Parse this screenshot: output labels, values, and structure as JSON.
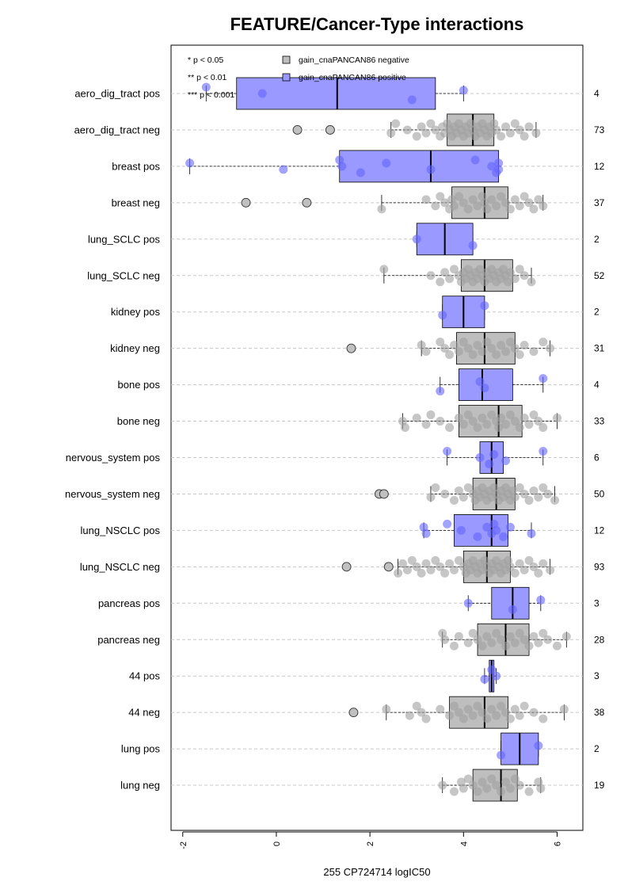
{
  "chart_data": {
    "type": "boxplot",
    "orientation": "horizontal",
    "title": "FEATURE/Cancer-Type interactions",
    "xlabel": "255 CP724714 logIC50",
    "xlim": [
      -2.25,
      6.55
    ],
    "xticks": [
      -2,
      0,
      2,
      4,
      6
    ],
    "grid": "horizontal dashed",
    "significance_legend": [
      "* p < 0.05",
      "** p < 0.01",
      "*** p < 0.001"
    ],
    "legend": [
      {
        "label": "gain_cnaPANCAN86 negative",
        "color": "#bebebe"
      },
      {
        "label": "gain_cnaPANCAN86 positive",
        "color": "#9999ff"
      }
    ],
    "point_colors": {
      "neg": "#a0a0a0",
      "pos": "#6464ff"
    },
    "categories": [
      {
        "label": "aero_dig_tract pos",
        "group": "pos",
        "n": "4",
        "box": {
          "q1": -0.85,
          "median": 1.3,
          "q3": 3.4,
          "wlo": -1.5,
          "whi": 4.0
        },
        "outliers": [],
        "points": [
          -1.5,
          -0.3,
          2.9,
          4.0
        ]
      },
      {
        "label": "aero_dig_tract neg",
        "group": "neg",
        "n": "73",
        "box": {
          "q1": 3.65,
          "median": 4.2,
          "q3": 4.65,
          "wlo": 2.45,
          "whi": 5.55
        },
        "outliers": [
          0.45,
          1.15
        ],
        "points": [
          2.45,
          2.55,
          2.8,
          3.0,
          3.1,
          3.2,
          3.3,
          3.4,
          3.5,
          3.55,
          3.6,
          3.65,
          3.7,
          3.75,
          3.8,
          3.85,
          3.9,
          3.95,
          4.0,
          4.05,
          4.1,
          4.15,
          4.2,
          4.25,
          4.3,
          4.35,
          4.4,
          4.45,
          4.5,
          4.55,
          4.6,
          4.65,
          4.7,
          4.8,
          4.9,
          5.0,
          5.1,
          5.2,
          5.3,
          5.4,
          5.55
        ]
      },
      {
        "label": "breast pos",
        "group": "pos",
        "n": "12",
        "box": {
          "q1": 1.35,
          "median": 3.3,
          "q3": 4.75,
          "wlo": -1.85,
          "whi": 4.75
        },
        "outliers": [],
        "points": [
          -1.85,
          0.15,
          1.35,
          1.4,
          1.8,
          2.35,
          3.3,
          4.25,
          4.6,
          4.7,
          4.75,
          4.75
        ]
      },
      {
        "label": "breast neg",
        "group": "neg",
        "n": "37",
        "box": {
          "q1": 3.75,
          "median": 4.45,
          "q3": 4.95,
          "wlo": 2.25,
          "whi": 5.7
        },
        "outliers": [
          -0.65,
          0.65
        ],
        "points": [
          2.25,
          3.2,
          3.4,
          3.5,
          3.6,
          3.7,
          3.75,
          3.8,
          3.9,
          4.0,
          4.1,
          4.2,
          4.3,
          4.4,
          4.45,
          4.5,
          4.6,
          4.7,
          4.8,
          4.9,
          5.0,
          5.1,
          5.2,
          5.3,
          5.4,
          5.5,
          5.6,
          5.7
        ]
      },
      {
        "label": "lung_SCLC pos",
        "group": "pos",
        "n": "2",
        "box": {
          "q1": 3.0,
          "median": 3.6,
          "q3": 4.2,
          "wlo": 3.0,
          "whi": 4.2
        },
        "outliers": [],
        "points": [
          3.0,
          4.2
        ]
      },
      {
        "label": "lung_SCLC neg",
        "group": "neg",
        "n": "52",
        "box": {
          "q1": 3.95,
          "median": 4.45,
          "q3": 5.05,
          "wlo": 2.3,
          "whi": 5.45
        },
        "outliers": [],
        "points": [
          2.3,
          3.3,
          3.5,
          3.6,
          3.7,
          3.8,
          3.9,
          3.95,
          4.0,
          4.05,
          4.1,
          4.15,
          4.2,
          4.25,
          4.3,
          4.35,
          4.4,
          4.45,
          4.5,
          4.55,
          4.6,
          4.65,
          4.7,
          4.75,
          4.8,
          4.85,
          4.9,
          4.95,
          5.0,
          5.1,
          5.2,
          5.3,
          5.45
        ]
      },
      {
        "label": "kidney pos",
        "group": "pos",
        "n": "2",
        "box": {
          "q1": 3.55,
          "median": 4.0,
          "q3": 4.45,
          "wlo": 3.55,
          "whi": 4.45
        },
        "outliers": [],
        "points": [
          3.55,
          4.45
        ]
      },
      {
        "label": "kidney neg",
        "group": "neg",
        "n": "31",
        "box": {
          "q1": 3.85,
          "median": 4.45,
          "q3": 5.1,
          "wlo": 3.1,
          "whi": 5.85
        },
        "outliers": [
          1.6
        ],
        "points": [
          3.1,
          3.2,
          3.5,
          3.6,
          3.7,
          3.8,
          3.9,
          4.0,
          4.1,
          4.2,
          4.3,
          4.4,
          4.5,
          4.6,
          4.7,
          4.8,
          4.9,
          5.0,
          5.1,
          5.2,
          5.3,
          5.5,
          5.7,
          5.85
        ]
      },
      {
        "label": "bone pos",
        "group": "pos",
        "n": "4",
        "box": {
          "q1": 3.9,
          "median": 4.4,
          "q3": 5.05,
          "wlo": 3.5,
          "whi": 5.7
        },
        "outliers": [],
        "points": [
          3.5,
          4.35,
          4.45,
          5.7
        ]
      },
      {
        "label": "bone neg",
        "group": "neg",
        "n": "33",
        "box": {
          "q1": 3.9,
          "median": 4.75,
          "q3": 5.25,
          "wlo": 2.7,
          "whi": 6.0
        },
        "outliers": [],
        "points": [
          2.7,
          2.75,
          3.0,
          3.2,
          3.3,
          3.5,
          3.7,
          3.9,
          4.0,
          4.1,
          4.2,
          4.3,
          4.4,
          4.5,
          4.6,
          4.7,
          4.75,
          4.8,
          4.9,
          5.0,
          5.1,
          5.2,
          5.3,
          5.4,
          5.5,
          5.6,
          5.7,
          6.0
        ]
      },
      {
        "label": "nervous_system pos",
        "group": "pos",
        "n": "6",
        "box": {
          "q1": 4.35,
          "median": 4.6,
          "q3": 4.85,
          "wlo": 3.65,
          "whi": 5.7
        },
        "outliers": [],
        "points": [
          3.65,
          4.35,
          4.55,
          4.65,
          4.9,
          5.7
        ]
      },
      {
        "label": "nervous_system neg",
        "group": "neg",
        "n": "50",
        "box": {
          "q1": 4.2,
          "median": 4.7,
          "q3": 5.1,
          "wlo": 3.3,
          "whi": 5.95
        },
        "outliers": [
          2.2,
          2.3
        ],
        "points": [
          3.3,
          3.4,
          3.6,
          3.8,
          3.9,
          4.0,
          4.1,
          4.2,
          4.25,
          4.3,
          4.35,
          4.4,
          4.45,
          4.5,
          4.55,
          4.6,
          4.65,
          4.7,
          4.75,
          4.8,
          4.85,
          4.9,
          4.95,
          5.0,
          5.05,
          5.1,
          5.2,
          5.3,
          5.4,
          5.5,
          5.6,
          5.7,
          5.8,
          5.95
        ]
      },
      {
        "label": "lung_NSCLC pos",
        "group": "pos",
        "n": "12",
        "box": {
          "q1": 3.8,
          "median": 4.6,
          "q3": 4.95,
          "wlo": 3.15,
          "whi": 5.45
        },
        "outliers": [],
        "points": [
          3.15,
          3.2,
          3.65,
          3.95,
          4.3,
          4.5,
          4.6,
          4.65,
          4.7,
          4.85,
          5.0,
          5.45
        ]
      },
      {
        "label": "lung_NSCLC neg",
        "group": "neg",
        "n": "93",
        "box": {
          "q1": 4.0,
          "median": 4.5,
          "q3": 5.0,
          "wlo": 2.6,
          "whi": 5.85
        },
        "outliers": [
          1.5,
          2.4
        ],
        "points": [
          2.6,
          2.7,
          2.8,
          2.9,
          3.0,
          3.1,
          3.2,
          3.3,
          3.4,
          3.5,
          3.6,
          3.7,
          3.8,
          3.9,
          4.0,
          4.05,
          4.1,
          4.15,
          4.2,
          4.25,
          4.3,
          4.35,
          4.4,
          4.45,
          4.5,
          4.55,
          4.6,
          4.65,
          4.7,
          4.75,
          4.8,
          4.85,
          4.9,
          4.95,
          5.0,
          5.1,
          5.2,
          5.3,
          5.4,
          5.5,
          5.6,
          5.7,
          5.85
        ]
      },
      {
        "label": "pancreas pos",
        "group": "pos",
        "n": "3",
        "box": {
          "q1": 4.6,
          "median": 5.05,
          "q3": 5.4,
          "wlo": 4.1,
          "whi": 5.65
        },
        "outliers": [],
        "points": [
          4.1,
          5.05,
          5.65
        ]
      },
      {
        "label": "pancreas neg",
        "group": "neg",
        "n": "28",
        "box": {
          "q1": 4.3,
          "median": 4.9,
          "q3": 5.4,
          "wlo": 3.55,
          "whi": 6.2
        },
        "outliers": [],
        "points": [
          3.55,
          3.6,
          3.8,
          3.9,
          4.1,
          4.2,
          4.3,
          4.4,
          4.5,
          4.6,
          4.7,
          4.8,
          4.9,
          5.0,
          5.1,
          5.2,
          5.3,
          5.4,
          5.5,
          5.6,
          5.7,
          5.8,
          6.0,
          6.2
        ]
      },
      {
        "label": "44 pos",
        "group": "pos",
        "n": "3",
        "box": {
          "q1": 4.55,
          "median": 4.6,
          "q3": 4.65,
          "wlo": 4.45,
          "whi": 4.7
        },
        "outliers": [],
        "points": [
          4.45,
          4.6,
          4.7
        ]
      },
      {
        "label": "44 neg",
        "group": "neg",
        "n": "38",
        "box": {
          "q1": 3.7,
          "median": 4.45,
          "q3": 4.95,
          "wlo": 2.35,
          "whi": 6.15
        },
        "outliers": [
          1.65
        ],
        "points": [
          2.35,
          2.85,
          3.0,
          3.1,
          3.2,
          3.5,
          3.7,
          3.8,
          3.9,
          4.0,
          4.1,
          4.2,
          4.3,
          4.4,
          4.5,
          4.6,
          4.7,
          4.8,
          4.9,
          5.0,
          5.1,
          5.2,
          5.3,
          5.5,
          5.7,
          6.15
        ]
      },
      {
        "label": "lung pos",
        "group": "pos",
        "n": "2",
        "box": {
          "q1": 4.8,
          "median": 5.2,
          "q3": 5.6,
          "wlo": 4.8,
          "whi": 5.6
        },
        "outliers": [],
        "points": [
          4.8,
          5.6
        ]
      },
      {
        "label": "lung neg",
        "group": "neg",
        "n": "19",
        "box": {
          "q1": 4.2,
          "median": 4.8,
          "q3": 5.15,
          "wlo": 3.55,
          "whi": 5.65
        },
        "outliers": [],
        "points": [
          3.55,
          3.8,
          3.95,
          4.0,
          4.1,
          4.2,
          4.3,
          4.4,
          4.5,
          4.6,
          4.7,
          4.8,
          4.9,
          5.0,
          5.1,
          5.2,
          5.4,
          5.6,
          5.65
        ]
      }
    ]
  }
}
